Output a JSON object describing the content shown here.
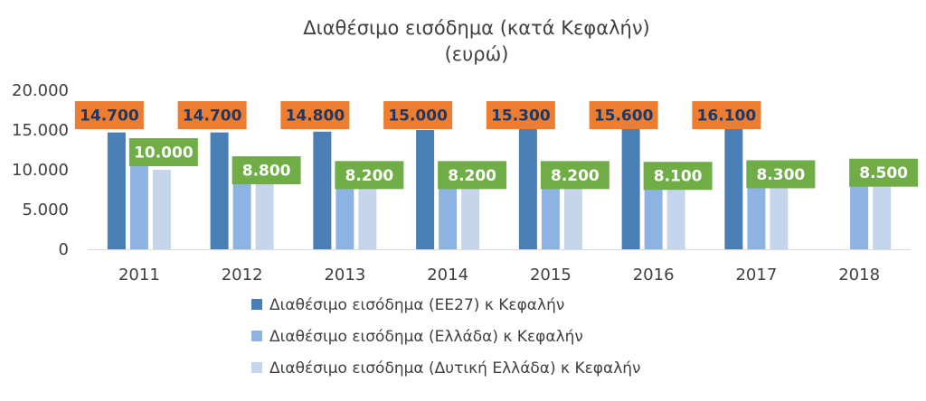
{
  "chart_data": {
    "type": "bar",
    "title": "Διαθέσιμο εισόδημα (κατά Κεφαλήν)",
    "subtitle": "(ευρώ)",
    "categories": [
      "2011",
      "2012",
      "2013",
      "2014",
      "2015",
      "2016",
      "2017",
      "2018"
    ],
    "ylim": [
      0,
      20000
    ],
    "yticks": [
      "0",
      "5.000",
      "10.000",
      "15.000",
      "20.000"
    ],
    "grid": false,
    "legend_position": "bottom",
    "series": [
      {
        "name": "Διαθέσιμο εισόδημα (ΕΕ27) κ Κεφαλήν",
        "color": "#4a7fb5",
        "values": [
          14700,
          14700,
          14800,
          15000,
          15300,
          15600,
          16100,
          null
        ],
        "data_labels": [
          "14.700",
          "14.700",
          "14.800",
          "15.000",
          "15.300",
          "15.600",
          "16.100",
          null
        ],
        "label_bg": "#ed7d31",
        "label_fg": "#1f3864"
      },
      {
        "name": "Διαθέσιμο εισόδημα (Ελλάδα) κ Κεφαλήν",
        "color": "#8db3e2",
        "values": [
          11200,
          10300,
          9700,
          9800,
          9900,
          9800,
          9900,
          10100
        ],
        "data_labels": [],
        "label_bg": "",
        "label_fg": ""
      },
      {
        "name": "Διαθέσιμο εισόδημα (Δυτική Ελλάδα) κ Κεφαλήν",
        "color": "#c5d5ec",
        "values": [
          10000,
          8800,
          8200,
          8200,
          8200,
          8100,
          8300,
          8500
        ],
        "data_labels": [
          "10.000",
          "8.800",
          "8.200",
          "8.200",
          "8.200",
          "8.100",
          "8.300",
          "8.500"
        ],
        "label_bg": "#70ad47",
        "label_fg": "#ffffff"
      }
    ]
  }
}
